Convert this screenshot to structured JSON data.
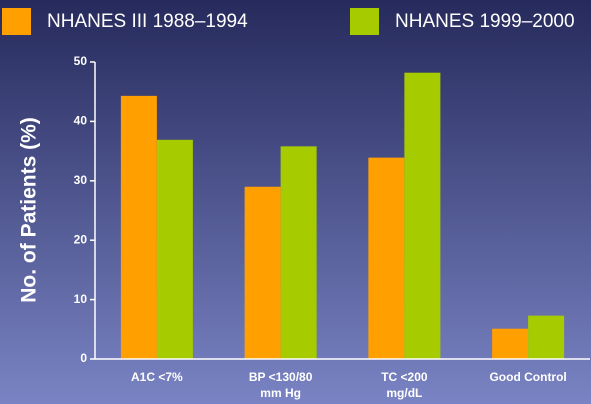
{
  "chart_data": {
    "type": "bar",
    "y_label": "No. of Patients (%)",
    "categories": [
      "A1C <7%",
      "BP <130/80\nmm Hg",
      "TC <200\nmg/dL",
      "Good Control"
    ],
    "series": [
      {
        "name": "NHANES III 1988–1994",
        "color": "#ffa000",
        "values": [
          44.3,
          29.0,
          33.9,
          5.1
        ]
      },
      {
        "name": "NHANES 1999–2000",
        "color": "#a6cc00",
        "values": [
          36.9,
          35.8,
          48.2,
          7.3
        ]
      }
    ],
    "ylim": [
      0,
      50
    ],
    "yticks": [
      0,
      10,
      20,
      30,
      40,
      50
    ],
    "legend": "top"
  }
}
